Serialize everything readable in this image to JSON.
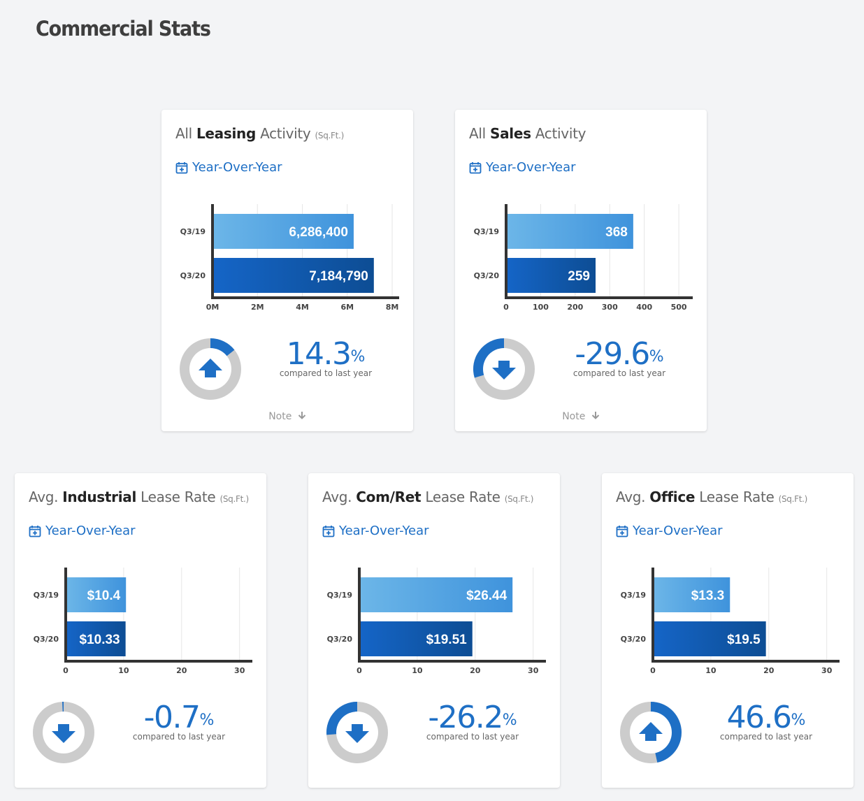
{
  "page": {
    "title": "Commercial Stats"
  },
  "colors": {
    "accent": "#1e6fc5",
    "bar_light_start": "#6cb6e8",
    "bar_light_end": "#3f93dc",
    "bar_dark_start": "#1565c7",
    "bar_dark_end": "#0d4d94",
    "donut_gray": "#cccccc",
    "axis": "#333333",
    "grid": "#e6e6e6"
  },
  "cards": [
    {
      "title_prefix": "All",
      "title_bold": "Leasing",
      "title_suffix": "Activity",
      "title_unit": "(Sq.Ft.)",
      "period_label": "Year-Over-Year",
      "period_icon": "calendar-plus-icon",
      "change_value": "14.3",
      "change_sign": "%",
      "compared_label": "compared to last year",
      "note_label": "Note",
      "note_icon": "arrow-down-icon",
      "change_fraction": 0.143,
      "direction": "up"
    },
    {
      "title_prefix": "All",
      "title_bold": "Sales",
      "title_suffix": "Activity",
      "title_unit": "",
      "period_label": "Year-Over-Year",
      "period_icon": "calendar-plus-icon",
      "change_value": "-29.6",
      "change_sign": "%",
      "compared_label": "compared to last year",
      "note_label": "Note",
      "note_icon": "arrow-down-icon",
      "change_fraction": -0.296,
      "direction": "down"
    },
    {
      "title_prefix": "Avg.",
      "title_bold": "Industrial",
      "title_suffix": "Lease Rate",
      "title_unit": "(Sq.Ft.)",
      "period_label": "Year-Over-Year",
      "period_icon": "calendar-plus-icon",
      "change_value": "-0.7",
      "change_sign": "%",
      "compared_label": "compared to last year",
      "note_label": "",
      "note_icon": "",
      "change_fraction": -0.007,
      "direction": "down"
    },
    {
      "title_prefix": "Avg.",
      "title_bold": "Com/Ret",
      "title_suffix": "Lease Rate",
      "title_unit": "(Sq.Ft.)",
      "period_label": "Year-Over-Year",
      "period_icon": "calendar-plus-icon",
      "change_value": "-26.2",
      "change_sign": "%",
      "compared_label": "compared to last year",
      "note_label": "",
      "note_icon": "",
      "change_fraction": -0.262,
      "direction": "down"
    },
    {
      "title_prefix": "Avg.",
      "title_bold": "Office",
      "title_suffix": "Lease Rate",
      "title_unit": "(Sq.Ft.)",
      "period_label": "Year-Over-Year",
      "period_icon": "calendar-plus-icon",
      "change_value": "46.6",
      "change_sign": "%",
      "compared_label": "compared to last year",
      "note_label": "",
      "note_icon": "",
      "change_fraction": 0.466,
      "direction": "up"
    }
  ],
  "chart_data": [
    {
      "type": "bar",
      "orientation": "horizontal",
      "categories": [
        "Q3/19",
        "Q3/20"
      ],
      "values": [
        6286400,
        7184790
      ],
      "data_labels": [
        "6,286,400",
        "7,184,790"
      ],
      "xlim": [
        0,
        8000000
      ],
      "xticks": [
        0,
        2000000,
        4000000,
        6000000,
        8000000
      ],
      "xtick_labels": [
        "0M",
        "2M",
        "4M",
        "6M",
        "8M"
      ],
      "grid": true,
      "title": "",
      "xlabel": "",
      "ylabel": ""
    },
    {
      "type": "bar",
      "orientation": "horizontal",
      "categories": [
        "Q3/19",
        "Q3/20"
      ],
      "values": [
        368,
        259
      ],
      "data_labels": [
        "368",
        "259"
      ],
      "xlim": [
        0,
        520
      ],
      "xticks": [
        0,
        100,
        200,
        300,
        400,
        500
      ],
      "xtick_labels": [
        "0",
        "100",
        "200",
        "300",
        "400",
        "500"
      ],
      "grid": true,
      "title": "",
      "xlabel": "",
      "ylabel": ""
    },
    {
      "type": "bar",
      "orientation": "horizontal",
      "categories": [
        "Q3/19",
        "Q3/20"
      ],
      "values": [
        10.4,
        10.33
      ],
      "data_labels": [
        "$10.4",
        "$10.33"
      ],
      "xlim": [
        0,
        31
      ],
      "xticks": [
        0,
        10,
        20,
        30
      ],
      "xtick_labels": [
        "0",
        "10",
        "20",
        "30"
      ],
      "grid": true,
      "title": "",
      "xlabel": "",
      "ylabel": ""
    },
    {
      "type": "bar",
      "orientation": "horizontal",
      "categories": [
        "Q3/19",
        "Q3/20"
      ],
      "values": [
        26.44,
        19.51
      ],
      "data_labels": [
        "$26.44",
        "$19.51"
      ],
      "xlim": [
        0,
        31
      ],
      "xticks": [
        0,
        10,
        20,
        30
      ],
      "xtick_labels": [
        "0",
        "10",
        "20",
        "30"
      ],
      "grid": true,
      "title": "",
      "xlabel": "",
      "ylabel": ""
    },
    {
      "type": "bar",
      "orientation": "horizontal",
      "categories": [
        "Q3/19",
        "Q3/20"
      ],
      "values": [
        13.3,
        19.5
      ],
      "data_labels": [
        "$13.3",
        "$19.5"
      ],
      "xlim": [
        0,
        31
      ],
      "xticks": [
        0,
        10,
        20,
        30
      ],
      "xtick_labels": [
        "0",
        "10",
        "20",
        "30"
      ],
      "grid": true,
      "title": "",
      "xlabel": "",
      "ylabel": ""
    }
  ]
}
